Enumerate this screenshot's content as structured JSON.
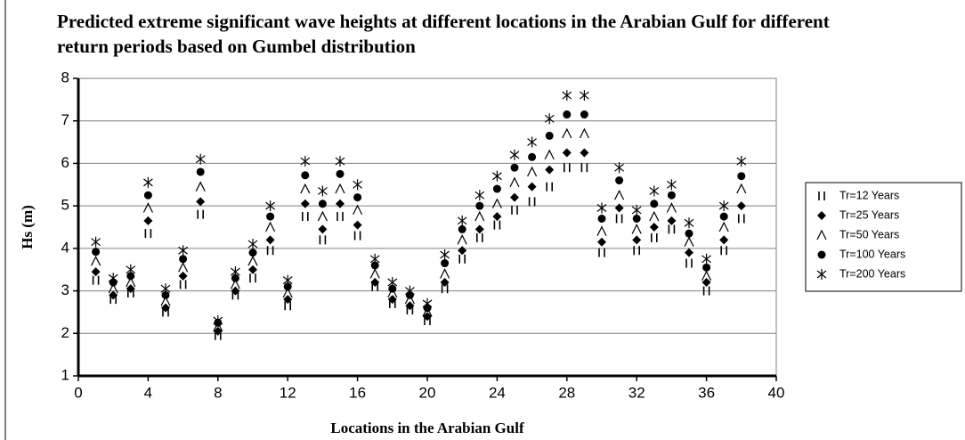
{
  "chart_data": {
    "type": "scatter",
    "title": "Predicted extreme significant wave heights at different locations in the Arabian Gulf for different return periods based on Gumbel distribution",
    "xlabel": "Locations in the Arabian Gulf",
    "ylabel": "Hs (m)",
    "x": [
      1,
      2,
      3,
      4,
      5,
      6,
      7,
      8,
      9,
      10,
      11,
      12,
      13,
      14,
      15,
      16,
      17,
      18,
      19,
      20,
      21,
      22,
      23,
      24,
      25,
      26,
      27,
      28,
      29,
      30,
      31,
      32,
      33,
      34,
      35,
      36,
      37,
      38
    ],
    "xlim": [
      0,
      40
    ],
    "xticks": [
      0,
      4,
      8,
      12,
      16,
      20,
      24,
      28,
      32,
      36,
      40
    ],
    "ylim": [
      1,
      8
    ],
    "yticks": [
      1,
      2,
      3,
      4,
      5,
      6,
      7,
      8
    ],
    "grid": true,
    "legend": "right",
    "series": [
      {
        "name": "Tr=12 Years",
        "color": "#000000",
        "marker": "bars",
        "values": [
          3.25,
          2.8,
          2.95,
          4.35,
          2.5,
          3.15,
          4.8,
          1.95,
          2.9,
          3.3,
          3.95,
          2.65,
          4.75,
          4.2,
          4.75,
          4.3,
          3.1,
          2.7,
          2.55,
          2.3,
          3.05,
          3.75,
          4.25,
          4.55,
          4.9,
          5.1,
          5.45,
          5.9,
          5.9,
          3.9,
          4.7,
          3.95,
          4.25,
          4.45,
          3.65,
          3.0,
          3.95,
          4.7
        ]
      },
      {
        "name": "Tr=25 Years",
        "color": "#000000",
        "marker": "diamond",
        "values": [
          3.45,
          2.9,
          3.05,
          4.65,
          2.6,
          3.35,
          5.1,
          2.05,
          3.0,
          3.5,
          4.2,
          2.8,
          5.05,
          4.45,
          5.05,
          4.55,
          3.2,
          2.8,
          2.65,
          2.4,
          3.2,
          3.95,
          4.45,
          4.75,
          5.2,
          5.45,
          5.85,
          6.25,
          6.25,
          4.15,
          4.95,
          4.2,
          4.5,
          4.65,
          3.9,
          3.2,
          4.2,
          5.0
        ]
      },
      {
        "name": "Tr=50 Years",
        "color": "#000000",
        "marker": "caret",
        "values": [
          3.7,
          3.05,
          3.2,
          4.95,
          2.75,
          3.55,
          5.45,
          2.15,
          3.15,
          3.7,
          4.5,
          2.95,
          5.4,
          4.75,
          5.4,
          4.9,
          3.4,
          2.95,
          2.8,
          2.5,
          3.4,
          4.2,
          4.75,
          5.05,
          5.55,
          5.8,
          6.2,
          6.7,
          6.7,
          4.4,
          5.25,
          4.45,
          4.75,
          4.95,
          4.15,
          3.35,
          4.5,
          5.4
        ]
      },
      {
        "name": "Tr=100 Years",
        "color": "#000000",
        "marker": "circle",
        "values": [
          3.92,
          3.2,
          3.35,
          5.25,
          2.9,
          3.75,
          5.8,
          2.25,
          3.3,
          3.9,
          4.75,
          3.1,
          5.72,
          5.05,
          5.75,
          5.2,
          3.6,
          3.05,
          2.9,
          2.6,
          3.65,
          4.45,
          5.0,
          5.4,
          5.9,
          6.15,
          6.65,
          7.15,
          7.15,
          4.7,
          5.6,
          4.7,
          5.05,
          5.25,
          4.35,
          3.55,
          4.75,
          5.7
        ]
      },
      {
        "name": "Tr=200 Years",
        "color": "#000000",
        "marker": "asterisk",
        "values": [
          4.15,
          3.3,
          3.5,
          5.55,
          3.05,
          3.95,
          6.1,
          2.3,
          3.45,
          4.1,
          5.0,
          3.25,
          6.05,
          5.35,
          6.05,
          5.5,
          3.75,
          3.2,
          3.0,
          2.7,
          3.85,
          4.65,
          5.25,
          5.7,
          6.2,
          6.5,
          7.05,
          7.6,
          7.6,
          4.95,
          5.9,
          4.9,
          5.35,
          5.5,
          4.6,
          3.75,
          5.0,
          6.05
        ]
      }
    ]
  }
}
